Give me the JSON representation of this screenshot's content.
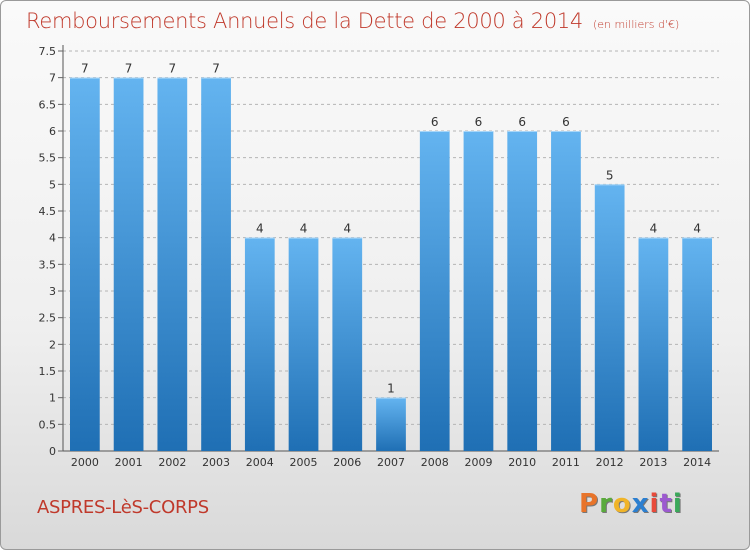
{
  "header": {
    "title": "Remboursements Annuels de la Dette de 2000 à 2014",
    "subtitle": "(en milliers d'€)"
  },
  "footer": {
    "commune": "ASPRES-LèS-CORPS",
    "logo": {
      "letters": [
        "P",
        "r",
        "o",
        "x",
        "i",
        "t",
        "i"
      ],
      "colors": [
        "#e8742a",
        "#5aaa3c",
        "#f0b428",
        "#2c7fd0",
        "#e84a3a",
        "#9c5ad0",
        "#3aa85a"
      ]
    }
  },
  "chart_data": {
    "type": "bar",
    "categories": [
      "2000",
      "2001",
      "2002",
      "2003",
      "2004",
      "2005",
      "2006",
      "2007",
      "2008",
      "2009",
      "2010",
      "2011",
      "2012",
      "2013",
      "2014"
    ],
    "values": [
      7,
      7,
      7,
      7,
      4,
      4,
      4,
      1,
      6,
      6,
      6,
      6,
      5,
      4,
      4
    ],
    "data_labels": [
      "7",
      "7",
      "7",
      "7",
      "4",
      "4",
      "4",
      "1",
      "6",
      "6",
      "6",
      "6",
      "5",
      "4",
      "4"
    ],
    "ylim": [
      0,
      7.5
    ],
    "yticks": [
      0,
      0.5,
      1,
      1.5,
      2,
      2.5,
      3,
      3.5,
      4,
      4.5,
      5,
      5.5,
      6,
      6.5,
      7,
      7.5
    ],
    "ytick_labels": [
      "0",
      "0.5",
      "1",
      "1.5",
      "2",
      "2.5",
      "3",
      "3.5",
      "4",
      "4.5",
      "5",
      "5.5",
      "6",
      "6.5",
      "7",
      "7.5"
    ],
    "grid": "horizontal-dashed",
    "colors": {
      "bar_top": "#64b4f0",
      "bar_bottom": "#1f6fb4",
      "text": "#333333"
    }
  }
}
